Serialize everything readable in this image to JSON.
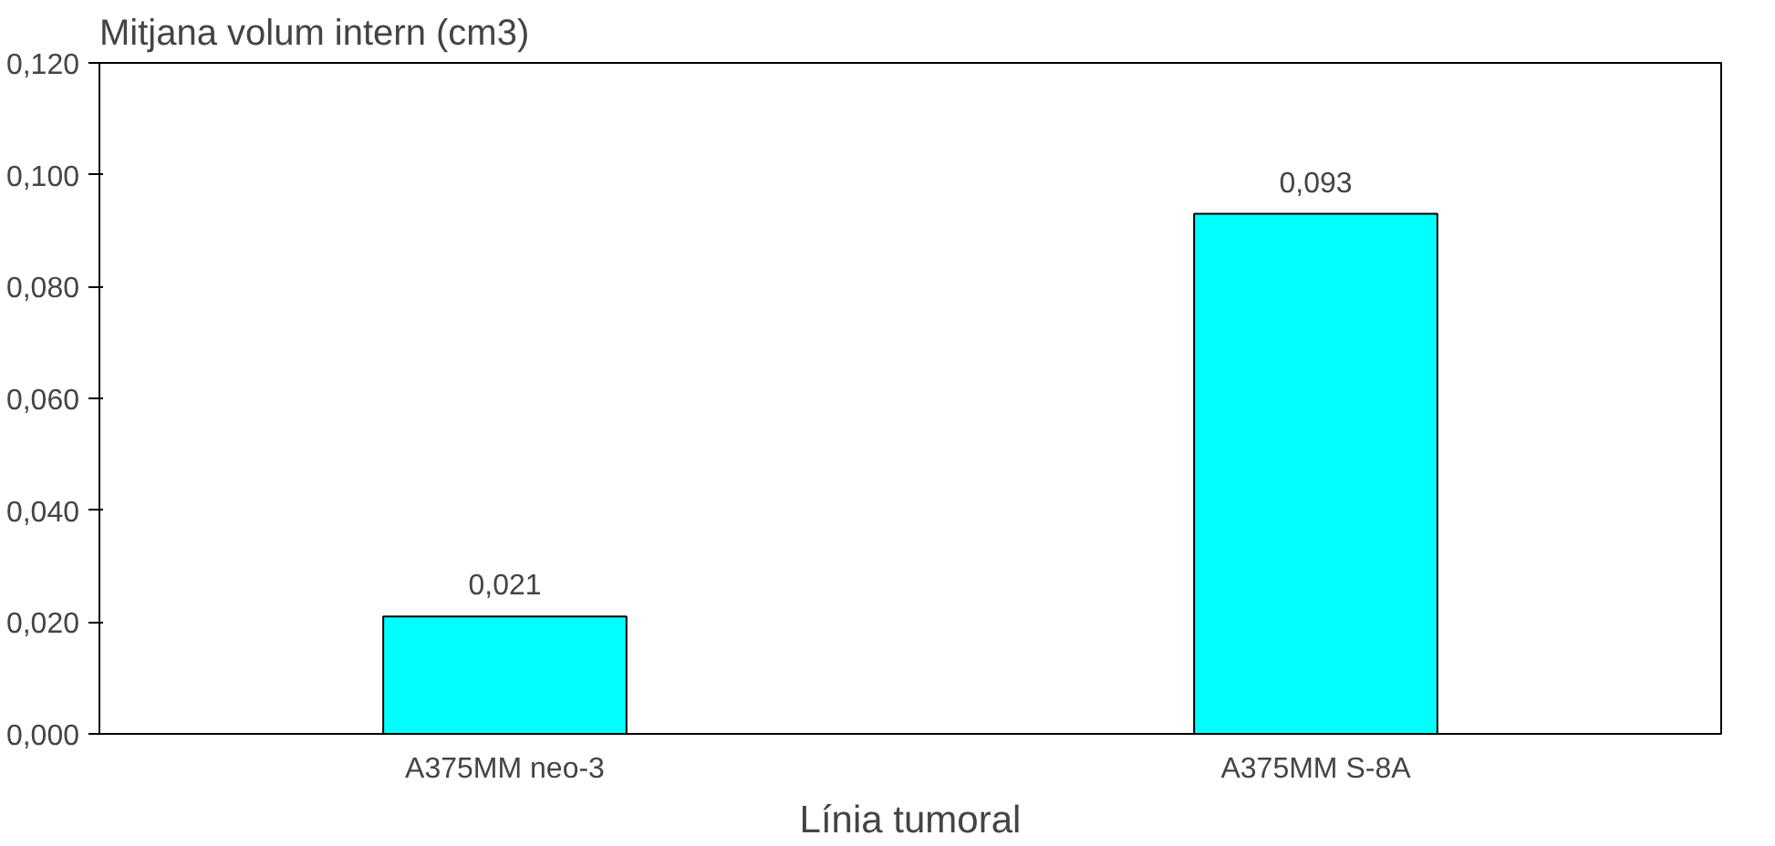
{
  "chart_data": {
    "type": "bar",
    "title": "Mitjana volum intern (cm3)",
    "xlabel": "Línia tumoral",
    "categories": [
      "A375MM neo-3",
      "A375MM S-8A"
    ],
    "values": [
      0.021,
      0.093
    ],
    "value_labels": [
      "0,021",
      "0,093"
    ],
    "color": "#00ffff",
    "ylim": [
      0,
      0.12
    ],
    "yticks": [
      {
        "value": 0,
        "label": "0,000"
      },
      {
        "value": 0.02,
        "label": "0,020"
      },
      {
        "value": 0.04,
        "label": "0,040"
      },
      {
        "value": 0.06,
        "label": "0,060"
      },
      {
        "value": 0.08,
        "label": "0,080"
      },
      {
        "value": 0.1,
        "label": "0,100"
      },
      {
        "value": 0.12,
        "label": "0,120"
      }
    ],
    "grid": false
  }
}
